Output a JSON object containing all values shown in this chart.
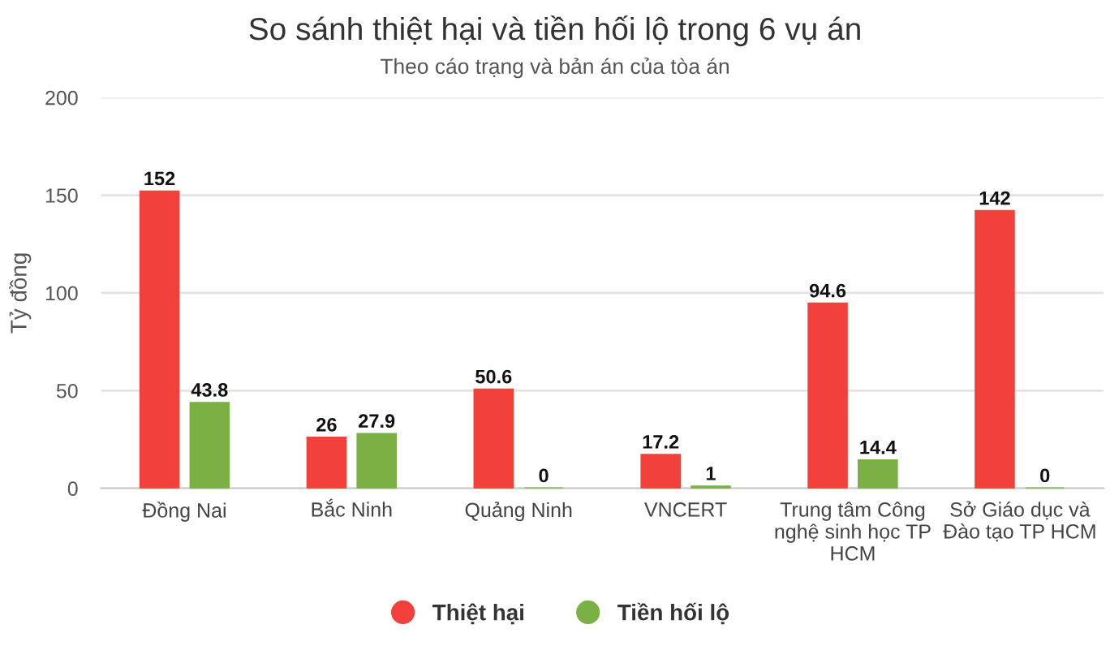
{
  "chart_data": {
    "type": "bar",
    "title": "So sánh thiệt hại và tiền hối lộ trong 6 vụ án",
    "subtitle": "Theo cáo trạng và bản án của tòa án",
    "ylabel": "Tỷ đồng",
    "categories": [
      "Đồng Nai",
      "Bắc Ninh",
      "Quảng Ninh",
      "VNCERT",
      "Trung tâm Công nghệ sinh học TP HCM",
      "Sở Giáo dục và Đào tạo TP HCM"
    ],
    "series": [
      {
        "name": "Thiệt hại",
        "color": "#f1413a",
        "values": [
          152,
          26,
          50.6,
          17.2,
          94.6,
          142
        ]
      },
      {
        "name": "Tiền hối lộ",
        "color": "#7bb144",
        "values": [
          43.8,
          27.9,
          0,
          1,
          14.4,
          0
        ]
      }
    ],
    "ylim": [
      0,
      200
    ],
    "yticks": [
      0,
      50,
      100,
      150,
      200
    ],
    "grid": "y",
    "legend": "bottom",
    "data_labels": true
  }
}
